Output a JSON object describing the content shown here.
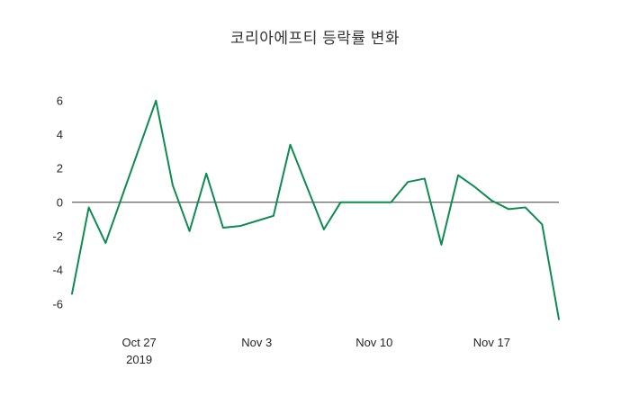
{
  "chart_data": {
    "type": "line",
    "title": "코리아에프티 등락률 변화",
    "grid": false,
    "legend": "none",
    "zero_line": true,
    "zero_line_color": "#3d3d3d",
    "tick_label_color": "#262626",
    "x": [
      "2019-10-23",
      "2019-10-24",
      "2019-10-25",
      "2019-10-26",
      "2019-10-27",
      "2019-10-28",
      "2019-10-29",
      "2019-10-30",
      "2019-10-31",
      "2019-11-01",
      "2019-11-02",
      "2019-11-03",
      "2019-11-04",
      "2019-11-05",
      "2019-11-06",
      "2019-11-07",
      "2019-11-08",
      "2019-11-09",
      "2019-11-10",
      "2019-11-11",
      "2019-11-12",
      "2019-11-13",
      "2019-11-14",
      "2019-11-15",
      "2019-11-16",
      "2019-11-17",
      "2019-11-18",
      "2019-11-19",
      "2019-11-20",
      "2019-11-21"
    ],
    "series": [
      {
        "name": "등락률",
        "color": "#0f8b52",
        "values": [
          -5.4,
          -0.3,
          -2.4,
          0.4,
          3.2,
          6.0,
          1.0,
          -1.7,
          1.7,
          -1.5,
          -1.4,
          -1.1,
          -0.8,
          3.4,
          0.9,
          -1.6,
          0.0,
          0.0,
          0.0,
          0.0,
          1.2,
          1.4,
          -2.5,
          1.6,
          0.9,
          0.1,
          -0.4,
          -0.3,
          -1.3,
          -6.9
        ]
      }
    ],
    "yticks": [
      6,
      4,
      2,
      0,
      -2,
      -4,
      -6
    ],
    "ylim": [
      -7.5,
      7.0
    ],
    "x_tick_labels": [
      {
        "index": 4,
        "label": "Oct 27",
        "sublabel": "2019"
      },
      {
        "index": 11,
        "label": "Nov 3"
      },
      {
        "index": 18,
        "label": "Nov 10"
      },
      {
        "index": 25,
        "label": "Nov 17"
      }
    ]
  }
}
